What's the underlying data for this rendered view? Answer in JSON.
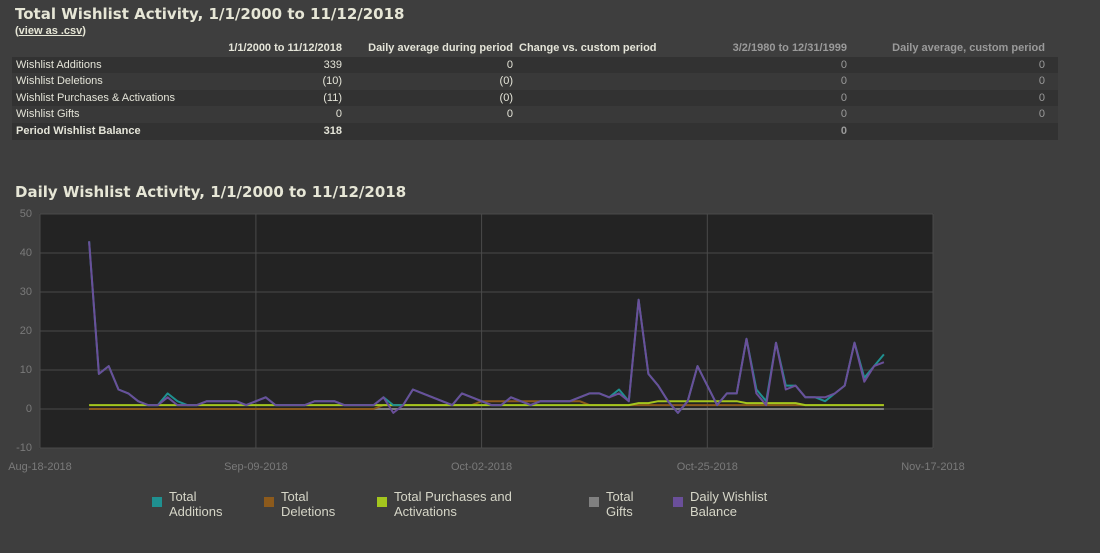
{
  "header": {
    "title": "Total Wishlist Activity, 1/1/2000 to 11/12/2018",
    "link": "view as .csv"
  },
  "table": {
    "columns": [
      "1/1/2000 to 11/12/2018",
      "Daily average during period",
      "Change vs. custom period",
      "3/2/1980 to 12/31/1999",
      "Daily average, custom period"
    ],
    "rows": [
      {
        "label": "Wishlist Additions",
        "cells": [
          339,
          0,
          null,
          0,
          0
        ]
      },
      {
        "label": "Wishlist Deletions",
        "cells": [
          "(10)",
          "(0)",
          null,
          0,
          0
        ]
      },
      {
        "label": "Wishlist Purchases & Activations",
        "cells": [
          "(11)",
          "(0)",
          null,
          0,
          0
        ]
      },
      {
        "label": "Wishlist Gifts",
        "cells": [
          0,
          0,
          null,
          0,
          0
        ]
      },
      {
        "label": "Period Wishlist Balance",
        "cells": [
          318,
          null,
          null,
          0,
          null
        ]
      }
    ]
  },
  "chart_data": {
    "type": "line",
    "title": "Daily Wishlist Activity, 1/1/2000 to 11/12/2018",
    "grid": true,
    "ylim": [
      -10,
      50
    ],
    "yticks": [
      -10,
      0,
      10,
      20,
      30,
      40,
      50
    ],
    "xlim": [
      "2018-08-18",
      "2018-11-17"
    ],
    "xticks": [
      {
        "value": "2018-08-18",
        "label": "Aug-18-2018"
      },
      {
        "value": "2018-09-09",
        "label": "Sep-09-2018"
      },
      {
        "value": "2018-10-02",
        "label": "Oct-02-2018"
      },
      {
        "value": "2018-10-25",
        "label": "Oct-25-2018"
      },
      {
        "value": "2018-11-17",
        "label": "Nov-17-2018"
      }
    ],
    "x": [
      "2018-08-23",
      "2018-08-24",
      "2018-08-25",
      "2018-08-26",
      "2018-08-27",
      "2018-08-28",
      "2018-08-29",
      "2018-08-30",
      "2018-08-31",
      "2018-09-01",
      "2018-09-02",
      "2018-09-03",
      "2018-09-04",
      "2018-09-05",
      "2018-09-06",
      "2018-09-07",
      "2018-09-08",
      "2018-09-09",
      "2018-09-10",
      "2018-09-11",
      "2018-09-12",
      "2018-09-13",
      "2018-09-14",
      "2018-09-15",
      "2018-09-16",
      "2018-09-17",
      "2018-09-18",
      "2018-09-19",
      "2018-09-20",
      "2018-09-21",
      "2018-09-22",
      "2018-09-23",
      "2018-09-24",
      "2018-09-25",
      "2018-09-26",
      "2018-09-27",
      "2018-09-28",
      "2018-09-29",
      "2018-09-30",
      "2018-10-01",
      "2018-10-02",
      "2018-10-03",
      "2018-10-04",
      "2018-10-05",
      "2018-10-06",
      "2018-10-07",
      "2018-10-08",
      "2018-10-09",
      "2018-10-10",
      "2018-10-11",
      "2018-10-12",
      "2018-10-13",
      "2018-10-14",
      "2018-10-15",
      "2018-10-16",
      "2018-10-17",
      "2018-10-18",
      "2018-10-19",
      "2018-10-20",
      "2018-10-21",
      "2018-10-22",
      "2018-10-23",
      "2018-10-24",
      "2018-10-25",
      "2018-10-26",
      "2018-10-27",
      "2018-10-28",
      "2018-10-29",
      "2018-10-30",
      "2018-10-31",
      "2018-11-01",
      "2018-11-02",
      "2018-11-03",
      "2018-11-04",
      "2018-11-05",
      "2018-11-06",
      "2018-11-07",
      "2018-11-08",
      "2018-11-09",
      "2018-11-10",
      "2018-11-11",
      "2018-11-12"
    ],
    "series": [
      {
        "name": "Total Additions",
        "color": "#1f9090",
        "values": [
          43,
          9,
          11,
          5,
          4,
          2,
          1,
          1,
          4,
          2,
          1,
          1,
          2,
          2,
          2,
          2,
          1,
          2,
          3,
          1,
          1,
          1,
          1,
          2,
          2,
          2,
          1,
          1,
          1,
          1,
          3,
          1,
          1,
          5,
          4,
          3,
          2,
          1,
          4,
          3,
          2,
          1,
          1,
          3,
          2,
          1,
          2,
          2,
          2,
          2,
          3,
          4,
          4,
          3,
          5,
          2,
          28,
          9,
          6,
          2,
          -1,
          2,
          11,
          6,
          1,
          4,
          4,
          18,
          5,
          2,
          17,
          6,
          6,
          3,
          3,
          2,
          4,
          6,
          17,
          8,
          11,
          14
        ]
      },
      {
        "name": "Total Deletions",
        "color": "#8c5a1c",
        "values": [
          0,
          0,
          0,
          0,
          0,
          0,
          0,
          0,
          0,
          0,
          0,
          0,
          0,
          0,
          0,
          0,
          0,
          0,
          0,
          0,
          0,
          0,
          0,
          0,
          0,
          0,
          0,
          0,
          0,
          0,
          1,
          1,
          1,
          1,
          1,
          1,
          1,
          1,
          1,
          1,
          2,
          2,
          2,
          2,
          2,
          2,
          2,
          2,
          2,
          2,
          2,
          1,
          1,
          1,
          1,
          1,
          1,
          1,
          1,
          1,
          1,
          1,
          1,
          1,
          1,
          1,
          1,
          1,
          1,
          1,
          1,
          1,
          1,
          1,
          1,
          1,
          1,
          1,
          1,
          1,
          1,
          1
        ]
      },
      {
        "name": "Total Purchases and Activations",
        "color": "#a4c61e",
        "values": [
          1,
          1,
          1,
          1,
          1,
          1,
          1,
          1,
          1,
          1,
          1,
          1,
          1,
          1,
          1,
          1,
          1,
          1,
          1,
          1,
          1,
          1,
          1,
          1,
          1,
          1,
          1,
          1,
          1,
          1,
          1,
          1,
          1,
          1,
          1,
          1,
          1,
          1,
          1,
          1,
          1,
          1,
          1,
          1,
          1,
          1,
          1,
          1,
          1,
          1,
          1,
          1,
          1,
          1,
          1,
          1,
          1.5,
          1.5,
          2,
          2,
          2,
          2,
          2,
          2,
          2,
          2,
          2,
          1.5,
          1.5,
          1.5,
          1.5,
          1.5,
          1.5,
          1,
          1,
          1,
          1,
          1,
          1,
          1,
          1,
          1
        ]
      },
      {
        "name": "Total Gifts",
        "color": "#808080",
        "values": [
          0,
          0,
          0,
          0,
          0,
          0,
          0,
          0,
          0,
          0,
          0,
          0,
          0,
          0,
          0,
          0,
          0,
          0,
          0,
          0,
          0,
          0,
          0,
          0,
          0,
          0,
          0,
          0,
          0,
          0,
          0,
          0,
          0,
          0,
          0,
          0,
          0,
          0,
          0,
          0,
          0,
          0,
          0,
          0,
          0,
          0,
          0,
          0,
          0,
          0,
          0,
          0,
          0,
          0,
          0,
          0,
          0,
          0,
          0,
          0,
          0,
          0,
          0,
          0,
          0,
          0,
          0,
          0,
          0,
          0,
          0,
          0,
          0,
          0,
          0,
          0,
          0,
          0,
          0,
          0,
          0,
          0
        ]
      },
      {
        "name": "Daily Wishlist Balance",
        "color": "#6a4f9a",
        "values": [
          43,
          9,
          11,
          5,
          4,
          2,
          1,
          1,
          3,
          1,
          1,
          1,
          2,
          2,
          2,
          2,
          1,
          2,
          3,
          1,
          1,
          1,
          1,
          2,
          2,
          2,
          1,
          1,
          1,
          1,
          3,
          -1,
          1,
          5,
          4,
          3,
          2,
          1,
          4,
          3,
          2,
          1,
          1,
          3,
          2,
          1,
          2,
          2,
          2,
          2,
          3,
          4,
          4,
          3,
          4,
          2,
          28,
          9,
          6,
          2,
          -1,
          2,
          11,
          6,
          1,
          4,
          4,
          18,
          4,
          1,
          17,
          5,
          6,
          3,
          3,
          3,
          4,
          6,
          17,
          7,
          11,
          12
        ]
      }
    ]
  }
}
